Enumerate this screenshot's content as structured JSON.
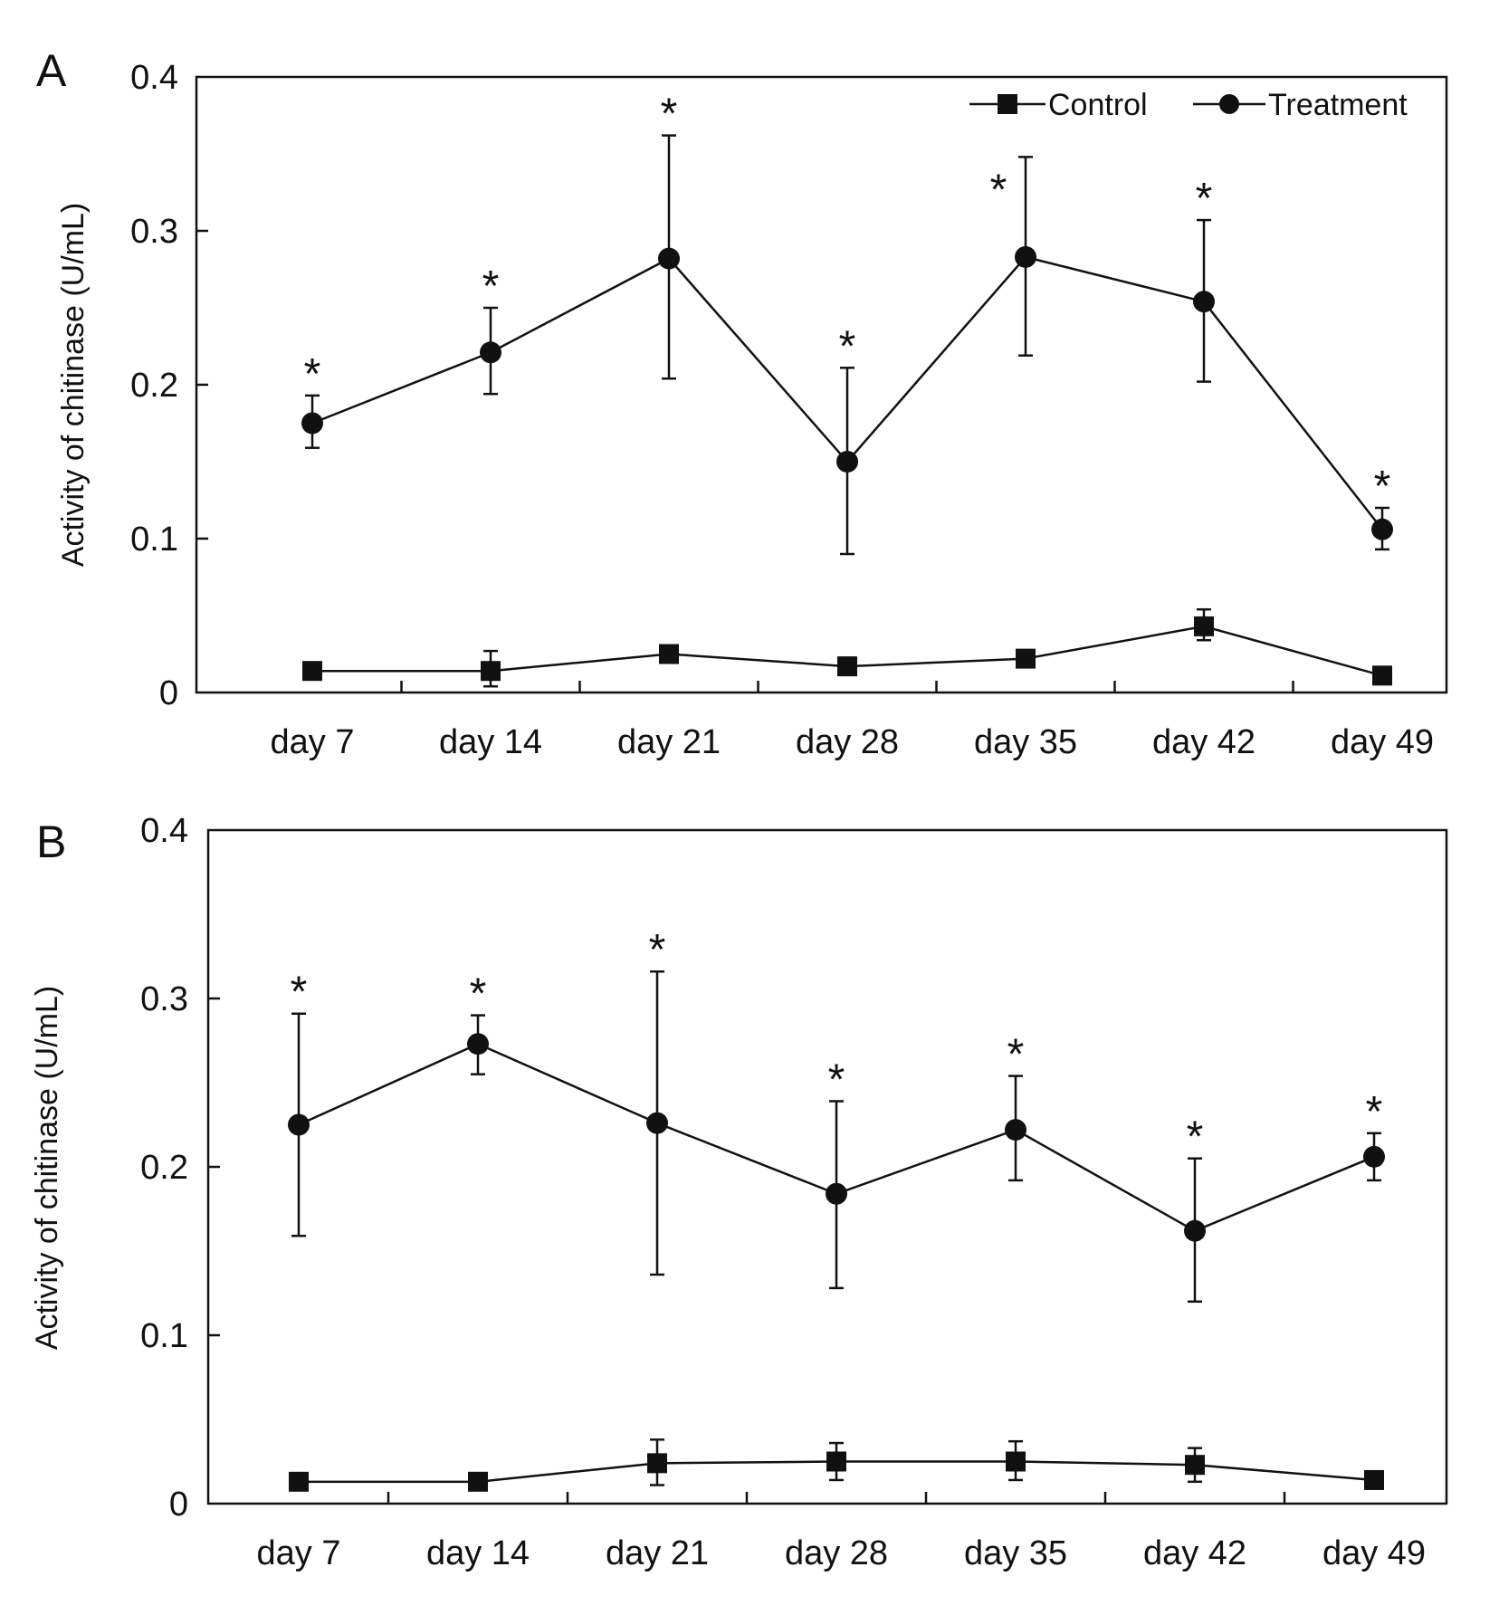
{
  "chart_data": [
    {
      "panel": "A",
      "type": "line",
      "ylabel": "Activity of chitinase (U/mL)",
      "ylim": [
        0,
        0.4
      ],
      "yticks": [
        "0",
        "0.1",
        "0.2",
        "0.3",
        "0.4"
      ],
      "yticks_values": [
        0,
        0.1,
        0.2,
        0.3,
        0.4
      ],
      "categories": [
        "day 7",
        "day 14",
        "day 21",
        "day 28",
        "day 35",
        "day 42",
        "day 49"
      ],
      "legend": {
        "position": "top-right",
        "entries": [
          "Control",
          "Treatment"
        ]
      },
      "series": [
        {
          "name": "Control",
          "marker": "square",
          "values": [
            0.014,
            0.014,
            0.025,
            0.017,
            0.022,
            0.043,
            0.011
          ],
          "error_upper": [
            0.014,
            0.027,
            0.025,
            0.017,
            0.022,
            0.054,
            0.011
          ],
          "error_lower": [
            0.014,
            0.004,
            0.025,
            0.017,
            0.022,
            0.034,
            0.011
          ]
        },
        {
          "name": "Treatment",
          "marker": "circle",
          "values": [
            0.175,
            0.221,
            0.282,
            0.15,
            0.283,
            0.254,
            0.106
          ],
          "error_upper": [
            0.193,
            0.25,
            0.362,
            0.211,
            0.348,
            0.307,
            0.12
          ],
          "error_lower": [
            0.159,
            0.194,
            0.204,
            0.09,
            0.219,
            0.202,
            0.093
          ]
        }
      ],
      "annotations": [
        "*",
        "*",
        "*",
        "*",
        "*",
        "*",
        "*"
      ]
    },
    {
      "panel": "B",
      "type": "line",
      "ylabel": "Activity of chitinase (U/mL)",
      "ylim": [
        0,
        0.4
      ],
      "yticks": [
        "0",
        "0.1",
        "0.2",
        "0.3",
        "0.4"
      ],
      "yticks_values": [
        0,
        0.1,
        0.2,
        0.3,
        0.4
      ],
      "categories": [
        "day 7",
        "day 14",
        "day 21",
        "day 28",
        "day 35",
        "day 42",
        "day 49"
      ],
      "series": [
        {
          "name": "Control",
          "marker": "square",
          "values": [
            0.013,
            0.013,
            0.024,
            0.025,
            0.025,
            0.023,
            0.014
          ],
          "error_upper": [
            0.013,
            0.013,
            0.038,
            0.036,
            0.037,
            0.033,
            0.014
          ],
          "error_lower": [
            0.013,
            0.013,
            0.011,
            0.014,
            0.014,
            0.013,
            0.014
          ]
        },
        {
          "name": "Treatment",
          "marker": "circle",
          "values": [
            0.225,
            0.273,
            0.226,
            0.184,
            0.222,
            0.162,
            0.206
          ],
          "error_upper": [
            0.291,
            0.29,
            0.316,
            0.239,
            0.254,
            0.205,
            0.22
          ],
          "error_lower": [
            0.159,
            0.255,
            0.136,
            0.128,
            0.192,
            0.12,
            0.192
          ]
        }
      ],
      "annotations": [
        "*",
        "*",
        "*",
        "*",
        "*",
        "*",
        "*"
      ]
    }
  ]
}
